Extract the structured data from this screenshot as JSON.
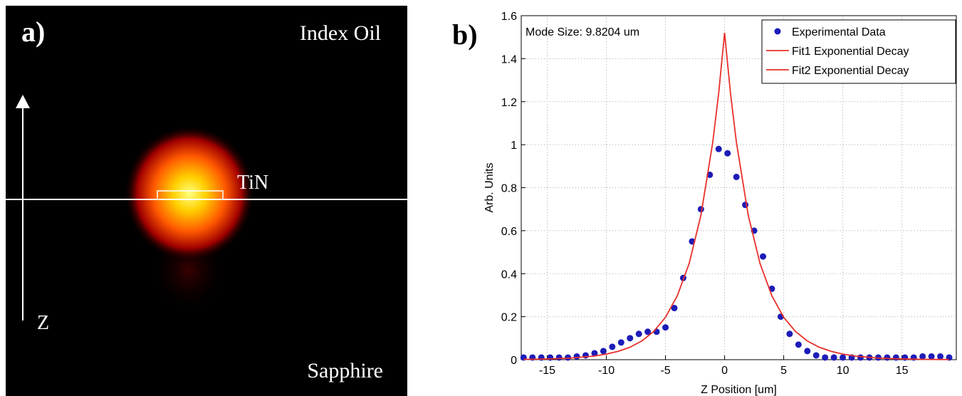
{
  "panel_a": {
    "label": "a)",
    "top_medium": "Index Oil",
    "layer": "TiN",
    "axis": "Z",
    "bottom_medium": "Sapphire"
  },
  "chart_data": {
    "type": "line",
    "panel_label": "b)",
    "annotation": "Mode Size: 9.8204 um",
    "x_label": "Z Position [um]",
    "y_label": "Arb. Units",
    "xlim": [
      -17.2,
      19.6
    ],
    "ylim": [
      0,
      1.6
    ],
    "xticks": [
      -15,
      -10,
      -5,
      0,
      5,
      10,
      15
    ],
    "yticks": [
      0,
      0.2,
      0.4,
      0.6,
      0.8,
      1,
      1.2,
      1.4,
      1.6
    ],
    "grid": true,
    "legend": "top-right",
    "series": [
      {
        "name": "Experimental Data",
        "color": "#1c1cb8",
        "style": "marker",
        "x": [
          -17,
          -16.25,
          -15.5,
          -14.75,
          -14,
          -13.25,
          -12.5,
          -11.75,
          -11,
          -10.25,
          -9.5,
          -8.75,
          -8,
          -7.25,
          -6.5,
          -5.75,
          -5,
          -4.25,
          -3.5,
          -2.75,
          -2,
          -1.25,
          -0.5,
          0.25,
          1,
          1.75,
          2.5,
          3.25,
          4,
          4.75,
          5.5,
          6.25,
          7,
          7.75,
          8.5,
          9.25,
          10,
          10.75,
          11.5,
          12.25,
          13,
          13.75,
          14.5,
          15.25,
          16,
          16.75,
          17.5,
          18.25,
          19
        ],
        "values": [
          0.01,
          0.01,
          0.01,
          0.01,
          0.01,
          0.01,
          0.015,
          0.02,
          0.03,
          0.04,
          0.06,
          0.08,
          0.1,
          0.12,
          0.13,
          0.13,
          0.15,
          0.24,
          0.38,
          0.55,
          0.7,
          0.86,
          0.98,
          0.96,
          0.85,
          0.72,
          0.6,
          0.48,
          0.33,
          0.2,
          0.12,
          0.07,
          0.04,
          0.02,
          0.01,
          0.01,
          0.01,
          0.01,
          0.01,
          0.01,
          0.01,
          0.01,
          0.01,
          0.01,
          0.01,
          0.015,
          0.015,
          0.015,
          0.01
        ]
      },
      {
        "name": "Fit1 Exponential Decay",
        "color": "#e8302a",
        "style": "line",
        "x": [
          -17,
          -15,
          -13,
          -11,
          -10,
          -9,
          -8,
          -7,
          -6,
          -5,
          -4,
          -3,
          -2,
          -1,
          -0.5,
          0
        ],
        "values": [
          0.0015,
          0.0033,
          0.0075,
          0.017,
          0.026,
          0.039,
          0.058,
          0.087,
          0.131,
          0.197,
          0.297,
          0.447,
          0.672,
          1.011,
          1.239,
          1.52
        ]
      },
      {
        "name": "Fit2 Exponential Decay",
        "color": "#e8302a",
        "style": "line",
        "x": [
          0,
          0.5,
          1,
          2,
          3,
          4,
          5,
          6,
          7,
          8,
          9,
          10,
          11,
          13,
          15,
          17,
          19
        ],
        "values": [
          1.52,
          1.239,
          1.011,
          0.672,
          0.447,
          0.297,
          0.197,
          0.131,
          0.087,
          0.058,
          0.039,
          0.026,
          0.017,
          0.0075,
          0.0033,
          0.0015,
          0.0007
        ]
      }
    ]
  }
}
